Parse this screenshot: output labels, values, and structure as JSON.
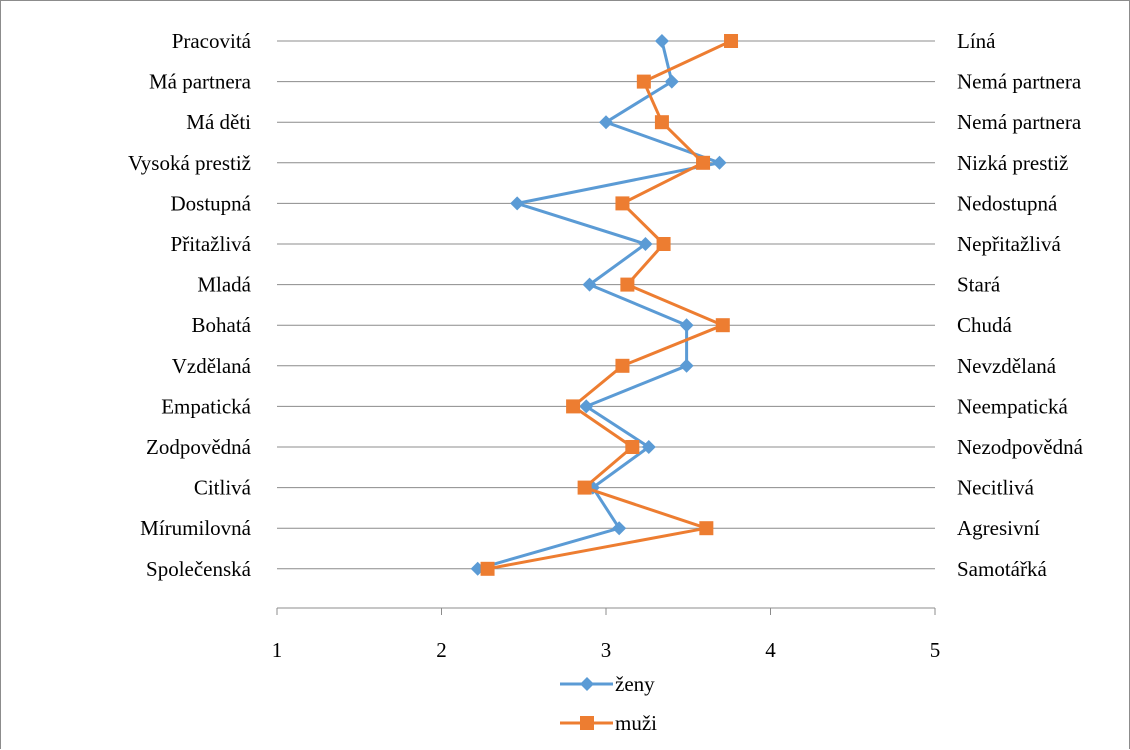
{
  "chart_data": {
    "type": "line",
    "orientation": "horizontal-profile",
    "left_labels": [
      "Pracovitá",
      "Má partnera",
      "Má děti",
      "Vysoká prestiž",
      "Dostupná",
      "Přitažlivá",
      "Mladá",
      "Bohatá",
      "Vzdělaná",
      "Empatická",
      "Zodpovědná",
      "Citlivá",
      "Mírumilovná",
      "Společenská"
    ],
    "right_labels": [
      "Líná",
      "Nemá partnera",
      "Nemá partnera",
      "Nizká prestiž",
      "Nedostupná",
      "Nepřitažlivá",
      "Stará",
      "Chudá",
      "Nevzdělaná",
      "Neempatická",
      "Nezodpovědná",
      "Necitlivá",
      "Agresivní",
      "Samotářká"
    ],
    "xlim": [
      1,
      5
    ],
    "xticks": [
      "1",
      "2",
      "3",
      "4",
      "5"
    ],
    "grid": true,
    "legend_position": "bottom",
    "series": [
      {
        "name": "ženy",
        "color": "#5b9bd5",
        "marker": "diamond",
        "values": [
          3.34,
          3.4,
          3.0,
          3.69,
          2.46,
          3.24,
          2.9,
          3.49,
          3.49,
          2.88,
          3.26,
          2.92,
          3.08,
          2.22
        ]
      },
      {
        "name": "muži",
        "color": "#ed7d31",
        "marker": "square",
        "values": [
          3.76,
          3.23,
          3.34,
          3.59,
          3.1,
          3.35,
          3.13,
          3.71,
          3.1,
          2.8,
          3.16,
          2.87,
          3.61,
          2.28
        ]
      }
    ]
  }
}
